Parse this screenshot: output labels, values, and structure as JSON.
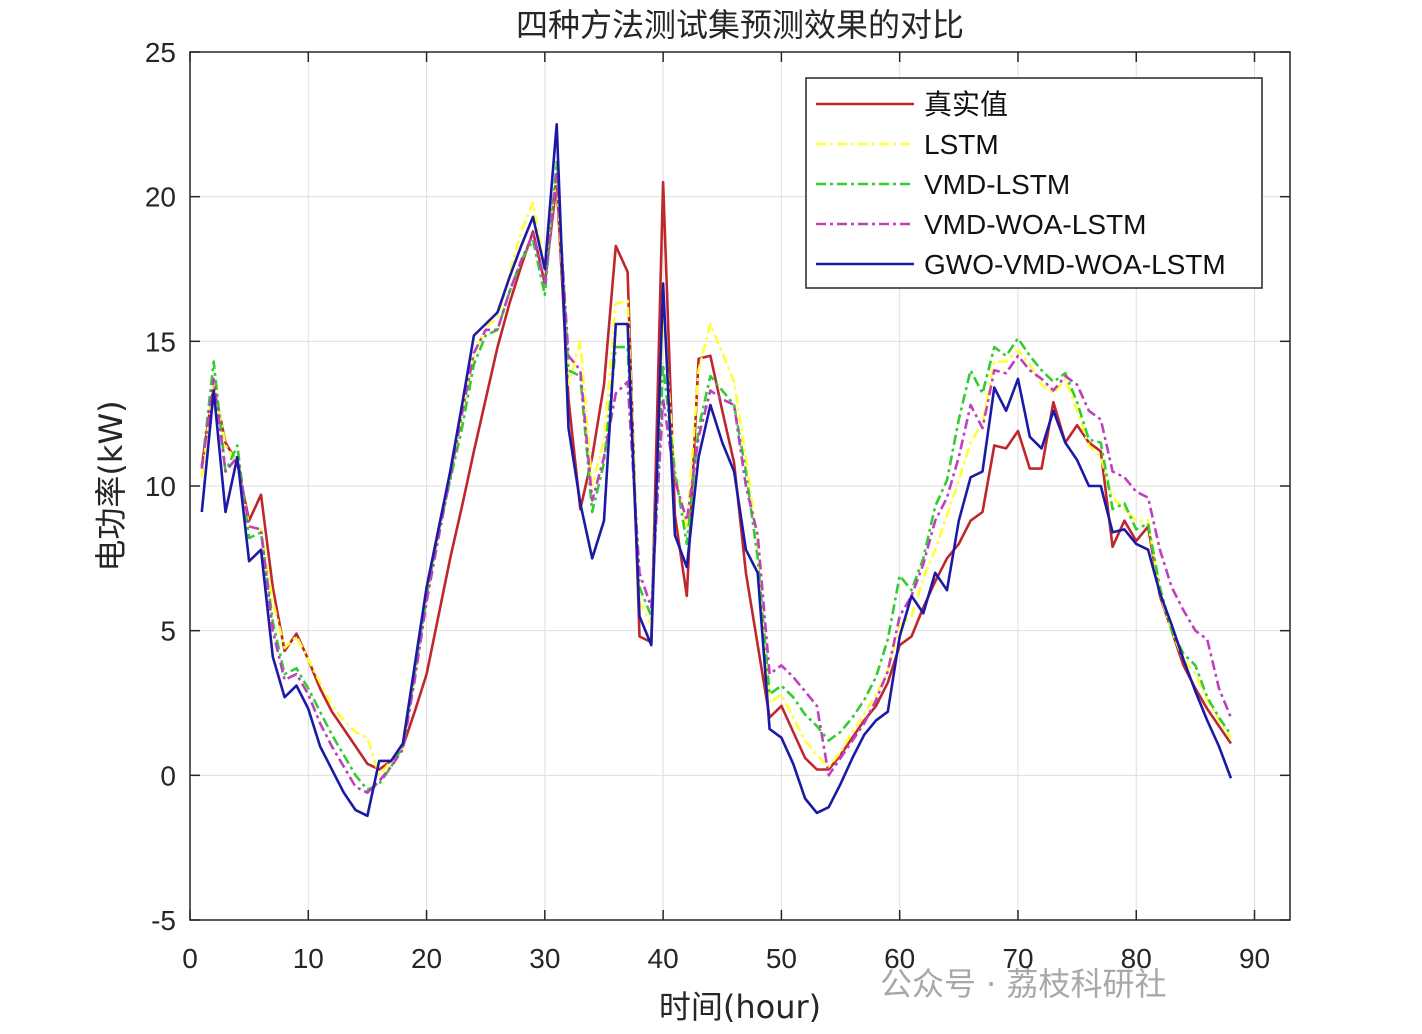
{
  "chart_data": {
    "type": "line",
    "title": "四种方法测试集预测效果的对比",
    "xlabel": "时间(hour)",
    "ylabel": "电功率(kW)",
    "xlim": [
      0,
      93
    ],
    "ylim": [
      -5,
      25
    ],
    "xticks": [
      0,
      10,
      20,
      30,
      40,
      50,
      60,
      70,
      80,
      90
    ],
    "yticks": [
      -5,
      0,
      5,
      10,
      15,
      20,
      25
    ],
    "grid": true,
    "legend_position": "top-right",
    "x": [
      1,
      2,
      3,
      4,
      5,
      6,
      7,
      8,
      9,
      10,
      11,
      12,
      13,
      14,
      15,
      16,
      17,
      18,
      19,
      20,
      21,
      22,
      23,
      24,
      25,
      26,
      27,
      28,
      29,
      30,
      31,
      32,
      33,
      34,
      35,
      36,
      37,
      38,
      39,
      40,
      41,
      42,
      43,
      44,
      45,
      46,
      47,
      48,
      49,
      50,
      51,
      52,
      53,
      54,
      55,
      56,
      57,
      58,
      59,
      60,
      61,
      62,
      63,
      64,
      65,
      66,
      67,
      68,
      69,
      70,
      71,
      72,
      73,
      74,
      75,
      76,
      77,
      78,
      79,
      80,
      81,
      82,
      83,
      84,
      85,
      86,
      87,
      88
    ],
    "series": [
      {
        "name": "真实值",
        "color": "#c0272d",
        "dash": "solid",
        "values": [
          10.7,
          13.5,
          11.5,
          10.8,
          8.8,
          9.7,
          6.5,
          4.3,
          4.9,
          4.0,
          3.0,
          2.2,
          1.6,
          1.0,
          0.4,
          0.2,
          0.5,
          1.0,
          2.2,
          3.5,
          5.5,
          7.5,
          9.3,
          11.2,
          13.0,
          14.8,
          16.3,
          17.6,
          18.8,
          17.0,
          20.5,
          13.0,
          9.2,
          11.0,
          13.5,
          18.3,
          17.4,
          4.8,
          4.6,
          20.5,
          9.0,
          6.2,
          14.4,
          14.5,
          12.6,
          10.8,
          7.0,
          4.5,
          2.0,
          2.4,
          1.5,
          0.6,
          0.2,
          0.2,
          0.7,
          1.3,
          1.9,
          2.4,
          3.2,
          4.5,
          4.8,
          5.8,
          6.7,
          7.5,
          8.0,
          8.8,
          9.1,
          11.4,
          11.3,
          11.9,
          10.6,
          10.6,
          12.9,
          11.5,
          12.1,
          11.5,
          11.2,
          7.9,
          8.8,
          8.1,
          8.6,
          6.2,
          5.0,
          3.8,
          3.0,
          2.3,
          1.7,
          1.1
        ]
      },
      {
        "name": "LSTM",
        "color": "#ffff33",
        "dash": "dashdot",
        "values": [
          10.3,
          13.6,
          11.4,
          10.8,
          8.6,
          8.5,
          6.0,
          4.4,
          4.8,
          4.0,
          3.2,
          2.4,
          1.9,
          1.5,
          1.3,
          0.0,
          0.5,
          1.0,
          3.5,
          6.2,
          8.4,
          10.3,
          12.5,
          14.5,
          15.5,
          15.8,
          17.3,
          18.8,
          19.8,
          17.5,
          20.8,
          13.5,
          15.0,
          10.0,
          11.6,
          16.3,
          16.4,
          6.0,
          5.2,
          16.0,
          10.5,
          8.5,
          14.0,
          15.6,
          14.6,
          13.6,
          11.0,
          8.0,
          2.5,
          2.8,
          2.0,
          1.2,
          0.7,
          0.3,
          0.8,
          1.5,
          2.1,
          2.8,
          3.6,
          5.2,
          5.5,
          6.8,
          7.8,
          9.0,
          10.2,
          11.5,
          12.2,
          14.3,
          14.3,
          14.7,
          14.2,
          13.5,
          13.2,
          13.7,
          12.6,
          11.4,
          11.0,
          9.6,
          9.2,
          8.8,
          8.8,
          6.3,
          5.0,
          4.0,
          3.5,
          2.6,
          1.9,
          1.3
        ]
      },
      {
        "name": "VMD-LSTM",
        "color": "#33cc33",
        "dash": "dashdot",
        "values": [
          10.6,
          14.3,
          10.5,
          11.4,
          8.2,
          8.4,
          5.3,
          3.5,
          3.7,
          3.0,
          2.2,
          1.4,
          0.7,
          0.0,
          -0.5,
          -0.3,
          0.3,
          1.0,
          3.5,
          6.2,
          8.4,
          10.2,
          12.0,
          14.2,
          15.2,
          15.4,
          16.7,
          17.8,
          18.5,
          16.6,
          21.2,
          14.0,
          13.8,
          9.1,
          10.8,
          14.8,
          14.8,
          6.5,
          5.5,
          14.2,
          10.5,
          8.0,
          12.0,
          13.8,
          13.3,
          12.8,
          10.5,
          7.5,
          2.8,
          3.1,
          2.7,
          2.1,
          1.7,
          1.2,
          1.5,
          2.0,
          2.6,
          3.4,
          4.7,
          6.9,
          6.4,
          7.5,
          9.3,
          10.2,
          12.3,
          14.0,
          13.2,
          14.8,
          14.5,
          15.1,
          14.5,
          14.0,
          13.6,
          13.9,
          12.9,
          11.6,
          11.5,
          9.2,
          9.4,
          8.5,
          8.7,
          6.5,
          5.0,
          4.2,
          3.8,
          2.7,
          2.0,
          1.4
        ]
      },
      {
        "name": "VMD-WOA-LSTM",
        "color": "#bf3fbf",
        "dash": "dashdot",
        "values": [
          10.6,
          13.7,
          10.5,
          11.0,
          8.6,
          8.5,
          5.0,
          3.3,
          3.5,
          2.8,
          1.8,
          1.0,
          0.3,
          -0.4,
          -0.6,
          -0.2,
          0.3,
          0.9,
          3.3,
          6.0,
          8.2,
          10.3,
          12.5,
          14.6,
          15.4,
          15.4,
          16.7,
          17.8,
          18.7,
          17.0,
          20.8,
          14.5,
          14.0,
          9.5,
          11.0,
          13.2,
          13.6,
          7.0,
          5.8,
          13.0,
          10.2,
          8.8,
          11.7,
          13.3,
          13.0,
          12.8,
          10.0,
          8.3,
          3.5,
          3.8,
          3.4,
          2.9,
          2.4,
          0.0,
          0.6,
          1.2,
          1.8,
          2.6,
          3.6,
          5.5,
          6.2,
          7.3,
          8.8,
          9.6,
          11.0,
          12.8,
          12.0,
          14.0,
          13.9,
          14.5,
          14.0,
          13.7,
          13.3,
          13.8,
          13.5,
          12.6,
          12.3,
          10.5,
          10.3,
          9.8,
          9.6,
          7.8,
          6.5,
          5.7,
          5.0,
          4.7,
          3.0,
          2.0
        ]
      },
      {
        "name": "GWO-VMD-WOA-LSTM",
        "color": "#1a1aa6",
        "dash": "solid",
        "values": [
          9.1,
          13.3,
          9.1,
          11.0,
          7.4,
          7.8,
          4.1,
          2.7,
          3.1,
          2.3,
          1.0,
          0.2,
          -0.6,
          -1.2,
          -1.4,
          0.5,
          0.5,
          1.1,
          3.8,
          6.5,
          8.5,
          10.5,
          12.8,
          15.2,
          15.6,
          16.0,
          17.2,
          18.3,
          19.3,
          17.5,
          22.5,
          12.0,
          9.4,
          7.5,
          8.8,
          15.6,
          15.6,
          5.5,
          4.5,
          17.0,
          8.3,
          7.2,
          11.0,
          12.8,
          11.5,
          10.5,
          7.8,
          7.0,
          1.6,
          1.3,
          0.4,
          -0.8,
          -1.3,
          -1.1,
          -0.3,
          0.6,
          1.4,
          1.9,
          2.2,
          4.8,
          6.2,
          5.6,
          7.0,
          6.4,
          8.8,
          10.3,
          10.5,
          13.4,
          12.6,
          13.7,
          11.7,
          11.3,
          12.6,
          11.5,
          10.9,
          10.0,
          10.0,
          8.4,
          8.5,
          8.0,
          7.8,
          6.3,
          5.2,
          4.0,
          2.9,
          1.9,
          1.0,
          -0.1
        ]
      }
    ]
  },
  "watermark": "公众号 · 荔枝科研社"
}
